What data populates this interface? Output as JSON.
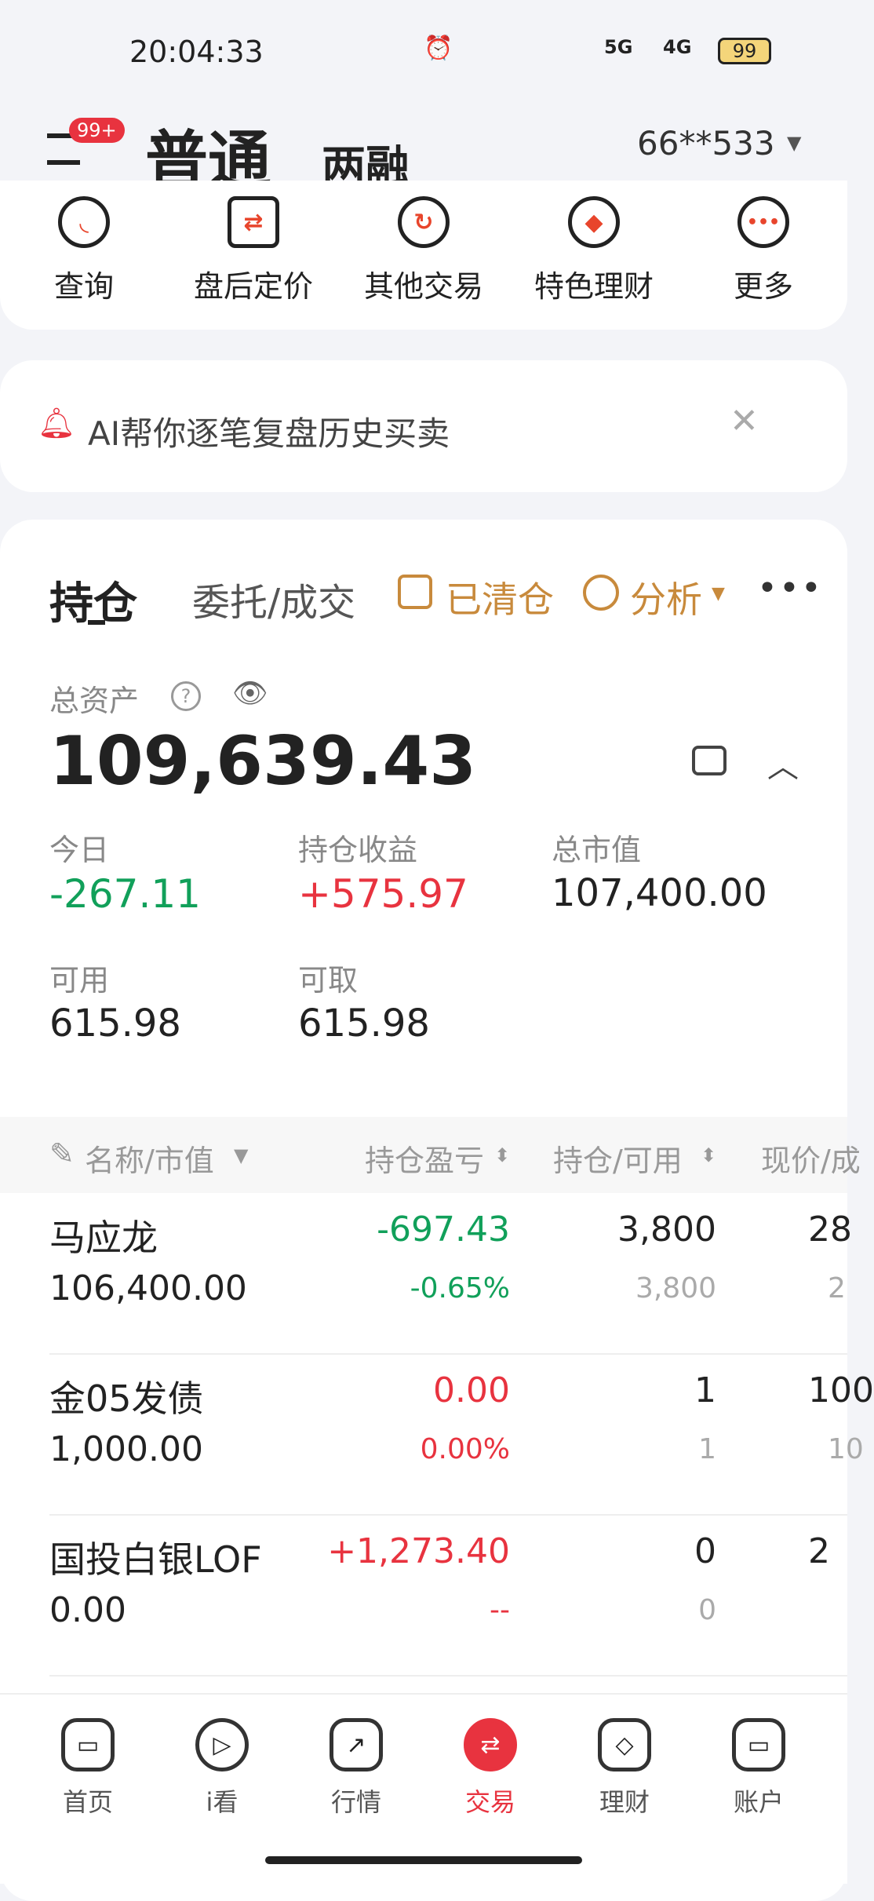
{
  "status_bar": {
    "time": "20:04:33",
    "battery": "99",
    "net1": "5G",
    "net2": "4G"
  },
  "header": {
    "badge": "99+",
    "tab_normal": "普通",
    "tab_margin": "两融",
    "account": "66**533"
  },
  "quick_actions": [
    {
      "label": "查询",
      "icon": "search-icon"
    },
    {
      "label": "盘后定价",
      "icon": "swap-icon"
    },
    {
      "label": "其他交易",
      "icon": "refresh-icon"
    },
    {
      "label": "特色理财",
      "icon": "diamond-icon"
    },
    {
      "label": "更多",
      "icon": "more-icon"
    }
  ],
  "banner": {
    "text": "AI帮你逐笔复盘历史买卖"
  },
  "holdings": {
    "tabs": {
      "positions": "持仓",
      "orders": "委托/成交",
      "cleared": "已清仓",
      "analysis": "分析"
    },
    "total_assets_label": "总资产",
    "total_assets": "109,639.43",
    "today_label": "今日",
    "today": "-267.11",
    "pnl_label": "持仓收益",
    "pnl": "+575.97",
    "market_value_label": "总市值",
    "market_value": "107,400.00",
    "available_label": "可用",
    "available": "615.98",
    "withdrawable_label": "可取",
    "withdrawable": "615.98",
    "columns": [
      "名称/市值",
      "持仓盈亏",
      "持仓/可用",
      "现价/成"
    ],
    "rows": [
      {
        "name": "马应龙",
        "market_value": "106,400.00",
        "pnl": "-697.43",
        "pnl_pct": "-0.65%",
        "qty": "3,800",
        "avail": "3,800",
        "price": "28",
        "cost": "2"
      },
      {
        "name": "金05发债",
        "market_value": "1,000.00",
        "pnl": "0.00",
        "pnl_pct": "0.00%",
        "qty": "1",
        "avail": "1",
        "price": "100",
        "cost": "10"
      },
      {
        "name": "国投白银LOF",
        "market_value": "0.00",
        "pnl": "+1,273.40",
        "pnl_pct": "--",
        "qty": "0",
        "avail": "0",
        "price": "2",
        "cost": ""
      }
    ]
  },
  "colors": {
    "up": "#e8333f",
    "down": "#11a05a",
    "accent": "#c88a3c"
  },
  "bottom_nav": [
    {
      "label": "首页",
      "icon": "home-icon"
    },
    {
      "label": "i看",
      "icon": "play-icon"
    },
    {
      "label": "行情",
      "icon": "chart-icon"
    },
    {
      "label": "交易",
      "icon": "trade-icon",
      "active": true
    },
    {
      "label": "理财",
      "icon": "wealth-icon"
    },
    {
      "label": "账户",
      "icon": "account-icon"
    }
  ]
}
